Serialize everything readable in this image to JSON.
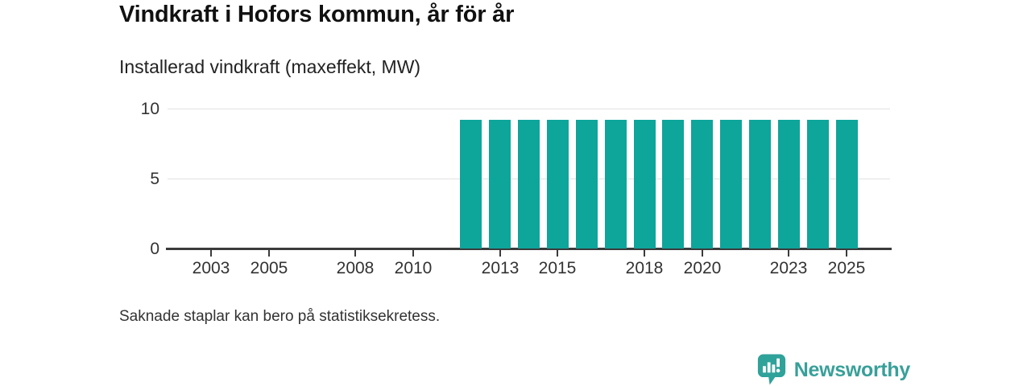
{
  "header": {
    "title": "Vindkraft i Hofors kommun, år för år",
    "subtitle": "Installerad vindkraft (maxeffekt, MW)"
  },
  "note": "Saknade staplar kan bero på statistiksekretess.",
  "brand": {
    "name": "Newsworthy",
    "icon": "bar-chart-speech-bubble-icon"
  },
  "colors": {
    "bar": "#0ea59b",
    "brand_teal": "#38a099",
    "axis": "#3b3b3b",
    "grid": "#e2e2e2",
    "title_text": "#111111",
    "label_text": "#333333"
  },
  "chart_data": {
    "type": "bar",
    "title": "Vindkraft i Hofors kommun, år för år",
    "subtitle": "Installerad vindkraft (maxeffekt, MW)",
    "ylabel": "Installerad vindkraft (maxeffekt, MW)",
    "xlabel": "",
    "unit": "MW",
    "ylim": [
      0,
      10
    ],
    "y_ticks": [
      0,
      5,
      10
    ],
    "x_domain": [
      2002,
      2026
    ],
    "x_ticks": [
      2003,
      2005,
      2008,
      2010,
      2013,
      2015,
      2018,
      2020,
      2023,
      2025
    ],
    "grid": "horizontal-at-5-and-10",
    "legend": "none",
    "series": [
      {
        "name": "Installerad vindkraft (maxeffekt, MW)",
        "years": [
          2012,
          2013,
          2014,
          2015,
          2016,
          2017,
          2018,
          2019,
          2020,
          2021,
          2022,
          2023,
          2024,
          2025
        ],
        "values": [
          9.2,
          9.2,
          9.2,
          9.2,
          9.2,
          9.2,
          9.2,
          9.2,
          9.2,
          9.2,
          9.2,
          9.2,
          9.2,
          9.2
        ]
      }
    ],
    "missing_years": [
      2002,
      2003,
      2004,
      2005,
      2006,
      2007,
      2008,
      2009,
      2010,
      2011
    ]
  }
}
